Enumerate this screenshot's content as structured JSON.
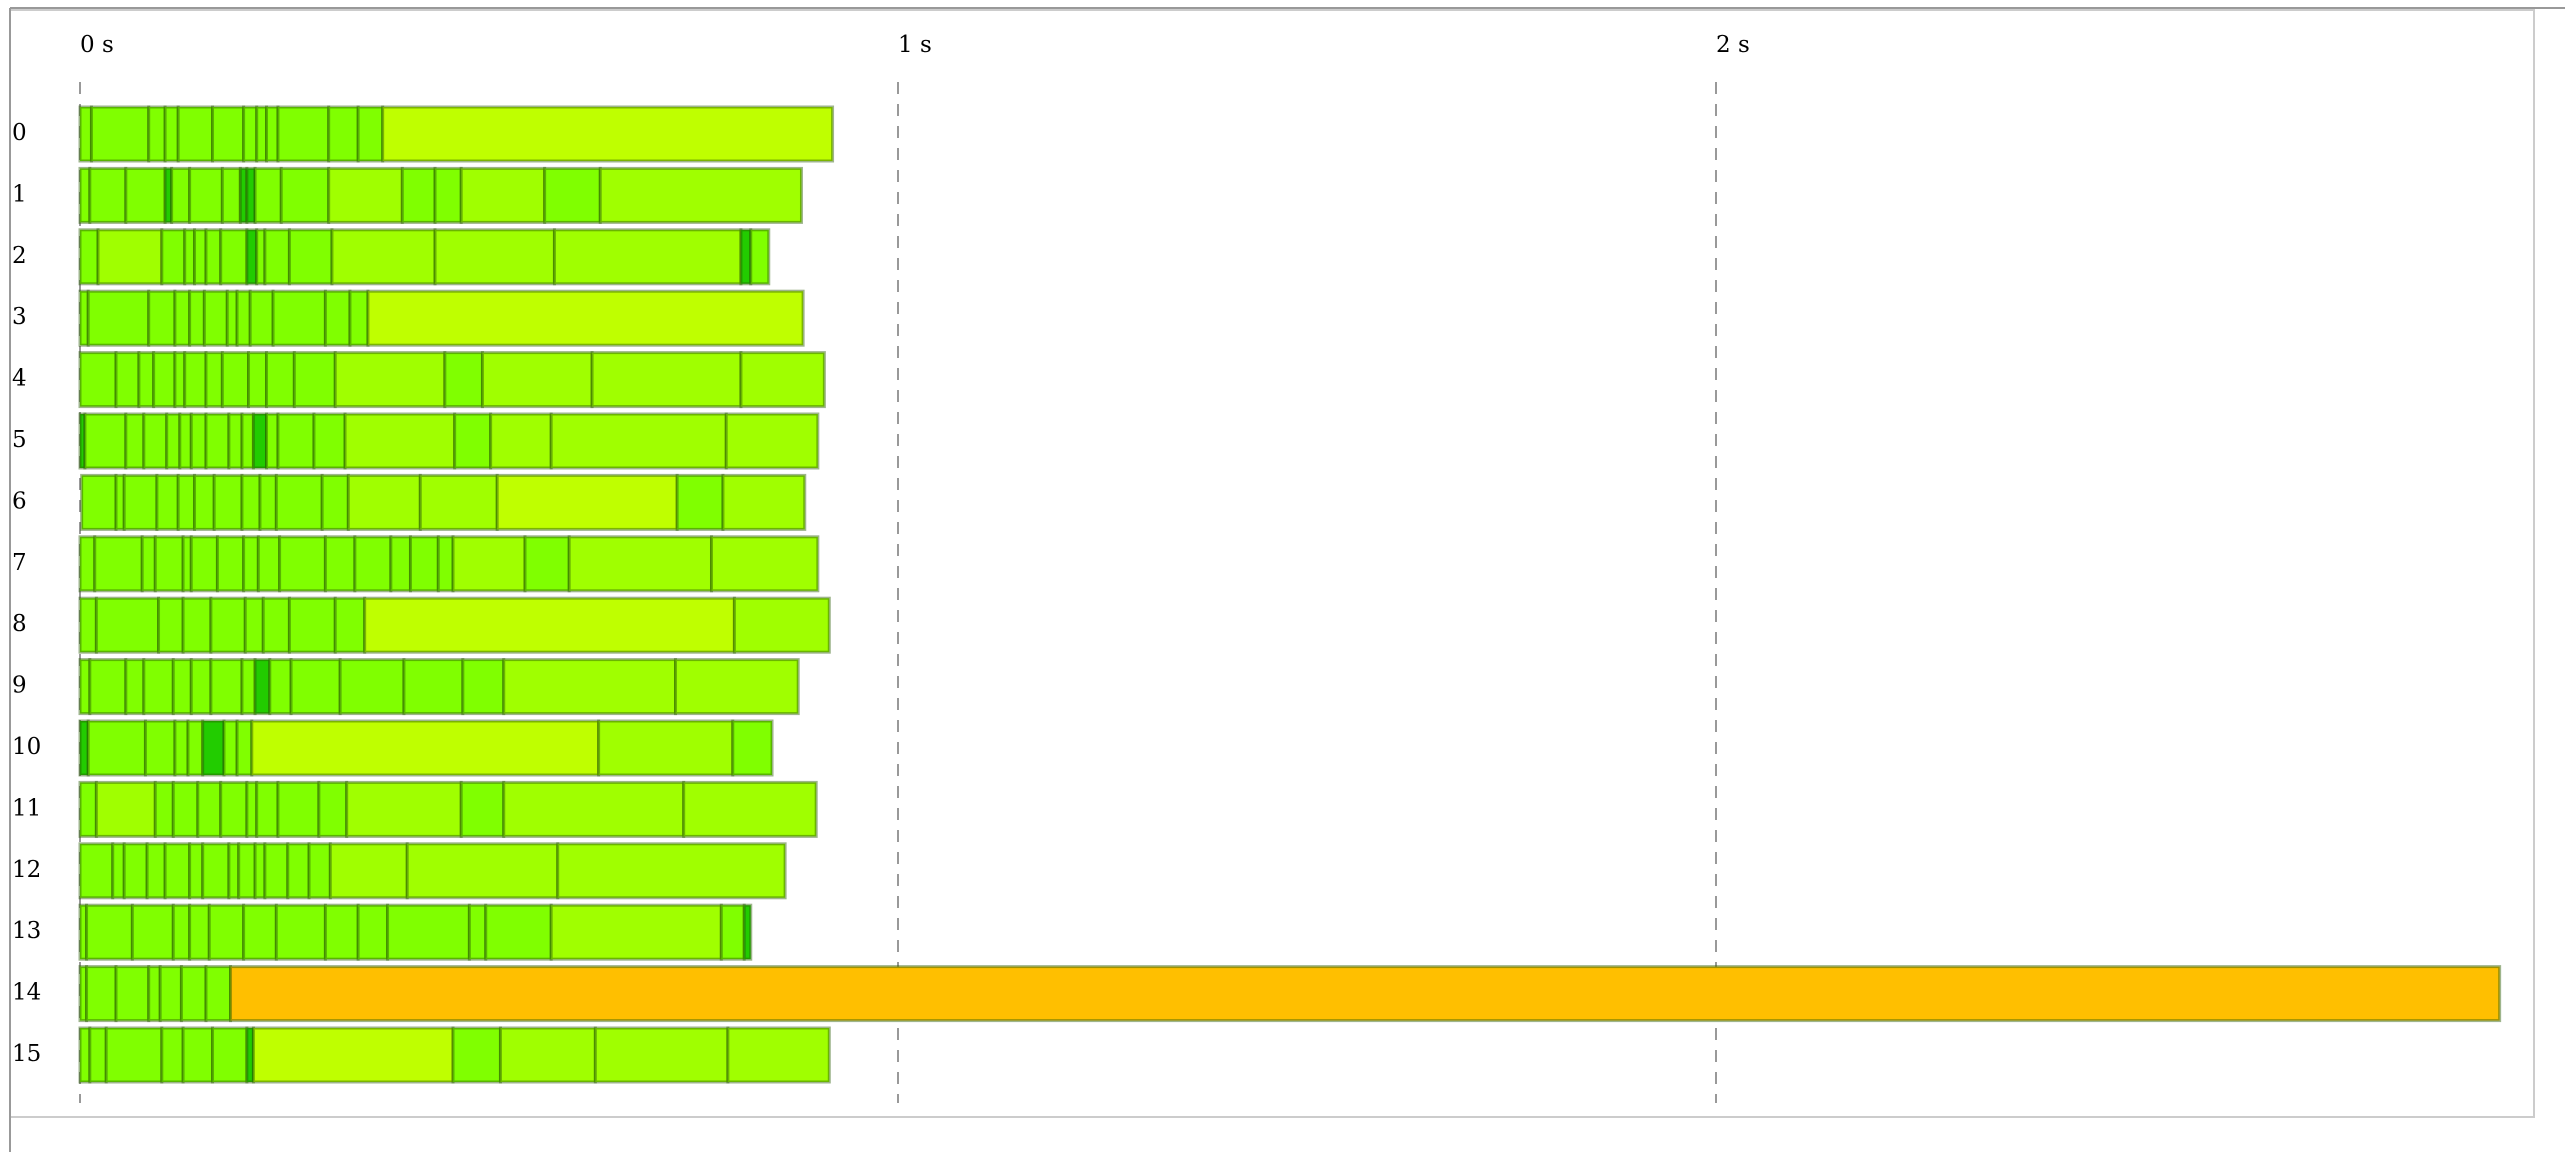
{
  "chart_data": {
    "type": "timeline",
    "xlim": [
      0,
      3
    ],
    "xticks": [
      {
        "value": 0,
        "label": "0 s"
      },
      {
        "value": 1,
        "label": "1 s"
      },
      {
        "value": 2,
        "label": "2 s"
      }
    ],
    "grid": true,
    "rows": [
      {
        "label": "0",
        "bounds": [
          0,
          0.014,
          0.084,
          0.104,
          0.12,
          0.162,
          0.2,
          0.216,
          0.228,
          0.242,
          0.304,
          0.34,
          0.37,
          0.92
        ],
        "colors": [
          "#80ff00",
          "#80ff00",
          "#80ff00",
          "#80ff00",
          "#80ff00",
          "#80ff00",
          "#80ff00",
          "#80ff00",
          "#80ff00",
          "#80ff00",
          "#80ff00",
          "#80ff00",
          "#bfff00"
        ]
      },
      {
        "label": "1",
        "bounds": [
          0,
          0.012,
          0.056,
          0.104,
          0.112,
          0.134,
          0.174,
          0.196,
          0.204,
          0.214,
          0.246,
          0.304,
          0.394,
          0.434,
          0.466,
          0.568,
          0.636,
          0.882
        ],
        "colors": [
          "#80ff00",
          "#80ff00",
          "#80ff00",
          "#22cc00",
          "#80ff00",
          "#80ff00",
          "#80ff00",
          "#22cc00",
          "#22cc00",
          "#80ff00",
          "#80ff00",
          "#a0ff00",
          "#80ff00",
          "#80ff00",
          "#a0ff00",
          "#80ff00",
          "#a0ff00"
        ]
      },
      {
        "label": "2",
        "bounds": [
          0,
          0.022,
          0.1,
          0.128,
          0.14,
          0.154,
          0.172,
          0.204,
          0.216,
          0.226,
          0.256,
          0.308,
          0.434,
          0.58,
          0.808,
          0.82,
          0.842
        ],
        "colors": [
          "#80ff00",
          "#a0ff00",
          "#80ff00",
          "#80ff00",
          "#80ff00",
          "#80ff00",
          "#80ff00",
          "#22cc00",
          "#80ff00",
          "#80ff00",
          "#80ff00",
          "#a0ff00",
          "#a0ff00",
          "#a0ff00",
          "#22cc00",
          "#80ff00"
        ]
      },
      {
        "label": "3",
        "bounds": [
          0,
          0.01,
          0.084,
          0.116,
          0.134,
          0.152,
          0.18,
          0.192,
          0.208,
          0.236,
          0.3,
          0.33,
          0.352,
          0.884
        ],
        "colors": [
          "#80ff00",
          "#80ff00",
          "#80ff00",
          "#80ff00",
          "#80ff00",
          "#80ff00",
          "#80ff00",
          "#80ff00",
          "#80ff00",
          "#80ff00",
          "#80ff00",
          "#80ff00",
          "#bfff00"
        ]
      },
      {
        "label": "4",
        "bounds": [
          0,
          0.044,
          0.072,
          0.09,
          0.116,
          0.128,
          0.154,
          0.174,
          0.206,
          0.228,
          0.262,
          0.312,
          0.446,
          0.492,
          0.626,
          0.808,
          0.91
        ],
        "colors": [
          "#80ff00",
          "#80ff00",
          "#80ff00",
          "#80ff00",
          "#80ff00",
          "#80ff00",
          "#80ff00",
          "#80ff00",
          "#80ff00",
          "#80ff00",
          "#80ff00",
          "#a0ff00",
          "#80ff00",
          "#a0ff00",
          "#a0ff00",
          "#a0ff00"
        ]
      },
      {
        "label": "5",
        "bounds": [
          0,
          0.006,
          0.056,
          0.078,
          0.106,
          0.122,
          0.136,
          0.154,
          0.182,
          0.198,
          0.212,
          0.228,
          0.242,
          0.286,
          0.324,
          0.458,
          0.502,
          0.576,
          0.79,
          0.902
        ],
        "colors": [
          "#22cc00",
          "#80ff00",
          "#80ff00",
          "#80ff00",
          "#80ff00",
          "#80ff00",
          "#80ff00",
          "#80ff00",
          "#80ff00",
          "#80ff00",
          "#22cc00",
          "#80ff00",
          "#80ff00",
          "#80ff00",
          "#a0ff00",
          "#80ff00",
          "#a0ff00",
          "#a0ff00",
          "#a0ff00"
        ]
      },
      {
        "label": "6",
        "bounds": [
          0.002,
          0.044,
          0.054,
          0.094,
          0.12,
          0.14,
          0.164,
          0.198,
          0.22,
          0.24,
          0.296,
          0.328,
          0.416,
          0.51,
          0.73,
          0.786,
          0.886
        ],
        "colors": [
          "#80ff00",
          "#80ff00",
          "#80ff00",
          "#80ff00",
          "#80ff00",
          "#80ff00",
          "#80ff00",
          "#80ff00",
          "#80ff00",
          "#80ff00",
          "#80ff00",
          "#a0ff00",
          "#a0ff00",
          "#bfff00",
          "#80ff00",
          "#a0ff00"
        ]
      },
      {
        "label": "7",
        "bounds": [
          0,
          0.018,
          0.076,
          0.092,
          0.126,
          0.136,
          0.168,
          0.2,
          0.218,
          0.244,
          0.3,
          0.336,
          0.38,
          0.404,
          0.438,
          0.456,
          0.544,
          0.598,
          0.772,
          0.902
        ],
        "colors": [
          "#80ff00",
          "#80ff00",
          "#80ff00",
          "#80ff00",
          "#80ff00",
          "#80ff00",
          "#80ff00",
          "#80ff00",
          "#80ff00",
          "#80ff00",
          "#80ff00",
          "#80ff00",
          "#80ff00",
          "#80ff00",
          "#80ff00",
          "#a0ff00",
          "#80ff00",
          "#a0ff00",
          "#a0ff00"
        ]
      },
      {
        "label": "8",
        "bounds": [
          0,
          0.02,
          0.096,
          0.126,
          0.16,
          0.202,
          0.224,
          0.256,
          0.312,
          0.348,
          0.8,
          0.916
        ],
        "colors": [
          "#80ff00",
          "#80ff00",
          "#80ff00",
          "#80ff00",
          "#80ff00",
          "#80ff00",
          "#80ff00",
          "#80ff00",
          "#80ff00",
          "#bfff00",
          "#a0ff00"
        ]
      },
      {
        "label": "9",
        "bounds": [
          0,
          0.012,
          0.056,
          0.078,
          0.114,
          0.136,
          0.16,
          0.198,
          0.214,
          0.232,
          0.258,
          0.318,
          0.396,
          0.468,
          0.518,
          0.728,
          0.878
        ],
        "colors": [
          "#80ff00",
          "#80ff00",
          "#80ff00",
          "#80ff00",
          "#80ff00",
          "#80ff00",
          "#80ff00",
          "#80ff00",
          "#22cc00",
          "#80ff00",
          "#80ff00",
          "#80ff00",
          "#80ff00",
          "#80ff00",
          "#a0ff00",
          "#a0ff00"
        ]
      },
      {
        "label": "10",
        "bounds": [
          0,
          0.01,
          0.08,
          0.116,
          0.132,
          0.15,
          0.176,
          0.192,
          0.21,
          0.634,
          0.798,
          0.846
        ],
        "colors": [
          "#22cc00",
          "#80ff00",
          "#80ff00",
          "#80ff00",
          "#80ff00",
          "#22cc00",
          "#80ff00",
          "#80ff00",
          "#bfff00",
          "#a0ff00",
          "#80ff00"
        ]
      },
      {
        "label": "11",
        "bounds": [
          0,
          0.02,
          0.092,
          0.114,
          0.144,
          0.172,
          0.204,
          0.216,
          0.242,
          0.292,
          0.326,
          0.466,
          0.518,
          0.738,
          0.9
        ],
        "colors": [
          "#80ff00",
          "#a0ff00",
          "#80ff00",
          "#80ff00",
          "#80ff00",
          "#80ff00",
          "#80ff00",
          "#80ff00",
          "#80ff00",
          "#80ff00",
          "#a0ff00",
          "#80ff00",
          "#a0ff00",
          "#a0ff00"
        ]
      },
      {
        "label": "12",
        "bounds": [
          0,
          0.04,
          0.054,
          0.082,
          0.104,
          0.134,
          0.15,
          0.182,
          0.194,
          0.214,
          0.226,
          0.254,
          0.28,
          0.306,
          0.4,
          0.584,
          0.862
        ],
        "colors": [
          "#80ff00",
          "#80ff00",
          "#80ff00",
          "#80ff00",
          "#80ff00",
          "#80ff00",
          "#80ff00",
          "#80ff00",
          "#80ff00",
          "#80ff00",
          "#80ff00",
          "#80ff00",
          "#80ff00",
          "#a0ff00",
          "#a0ff00",
          "#a0ff00"
        ]
      },
      {
        "label": "13",
        "bounds": [
          0,
          0.008,
          0.064,
          0.114,
          0.134,
          0.158,
          0.2,
          0.24,
          0.3,
          0.34,
          0.376,
          0.476,
          0.496,
          0.576,
          0.784,
          0.812,
          0.82
        ],
        "colors": [
          "#80ff00",
          "#80ff00",
          "#80ff00",
          "#80ff00",
          "#80ff00",
          "#80ff00",
          "#80ff00",
          "#80ff00",
          "#80ff00",
          "#80ff00",
          "#80ff00",
          "#80ff00",
          "#80ff00",
          "#a0ff00",
          "#80ff00",
          "#22cc00"
        ]
      },
      {
        "label": "14",
        "bounds": [
          0,
          0.008,
          0.044,
          0.084,
          0.098,
          0.124,
          0.154,
          0.184,
          2.958
        ],
        "colors": [
          "#80ff00",
          "#80ff00",
          "#80ff00",
          "#80ff00",
          "#80ff00",
          "#80ff00",
          "#80ff00",
          "#ffbf00"
        ]
      },
      {
        "label": "15",
        "bounds": [
          0,
          0.012,
          0.032,
          0.1,
          0.126,
          0.162,
          0.204,
          0.212,
          0.456,
          0.514,
          0.63,
          0.792,
          0.916
        ],
        "colors": [
          "#80ff00",
          "#80ff00",
          "#80ff00",
          "#80ff00",
          "#80ff00",
          "#80ff00",
          "#22cc00",
          "#bfff00",
          "#80ff00",
          "#a0ff00",
          "#a0ff00",
          "#a0ff00"
        ]
      }
    ]
  }
}
